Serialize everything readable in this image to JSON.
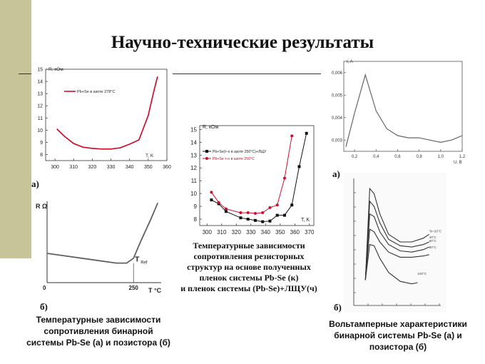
{
  "title": "Научно-технические результаты",
  "colors": {
    "sidebar": "#c8c49a",
    "red": "#c8102e",
    "black": "#111111",
    "gray": "#606060"
  },
  "labels": {
    "a1": "а)",
    "b1": "б)",
    "a2": "а)",
    "b2": "б)"
  },
  "captions": {
    "left": [
      "Температурные зависимости",
      "сопротивления бинарной",
      "системы Pb-Se (а) и позистора (б)"
    ],
    "center": [
      "Температурные зависимости",
      "сопротивления резисторных",
      "структур на основе полученных",
      "пленок системы Pb-Se (к)",
      "и пленок системы (Pb-Se)+ЛЩУ(ч)"
    ],
    "right": [
      "Вольтамперные характеристики",
      "бинарной системы Pb-Se (а) и",
      "позистора (б)"
    ]
  },
  "chart_data": [
    {
      "id": "chart-a-left",
      "type": "line",
      "ylabel": "R, кОм",
      "xlabel": "T, K",
      "xlim": [
        295,
        360
      ],
      "ylim": [
        7.5,
        15
      ],
      "xticks": [
        300,
        310,
        320,
        330,
        340,
        350,
        360
      ],
      "yticks": [
        8,
        9,
        10,
        11,
        12,
        13,
        14,
        15
      ],
      "legend": "Pb+Se в азоте 278°С",
      "series": [
        {
          "color": "#c8102e",
          "x": [
            301,
            305,
            310,
            315,
            320,
            325,
            330,
            335,
            340,
            345,
            350,
            353,
            355
          ],
          "y": [
            10.1,
            9.5,
            8.9,
            8.6,
            8.5,
            8.45,
            8.45,
            8.55,
            8.85,
            9.2,
            11.2,
            13.2,
            14.4
          ]
        }
      ]
    },
    {
      "id": "chart-b-left",
      "type": "line",
      "ylabel": "R Ω",
      "xlabel": "T °C",
      "xlim": [
        0,
        330
      ],
      "ylim": [
        0,
        10
      ],
      "xticks": [
        0,
        250
      ],
      "tref_label": "T",
      "tref_sub": "Ref",
      "series": [
        {
          "color": "#606060",
          "x": [
            0,
            50,
            100,
            150,
            200,
            230,
            250,
            270,
            300,
            320
          ],
          "y": [
            3.6,
            3.3,
            3.0,
            2.7,
            2.4,
            2.4,
            3.0,
            5.0,
            7.8,
            9.8
          ]
        }
      ]
    },
    {
      "id": "chart-center",
      "type": "line",
      "ylabel": "R, кОм",
      "xlabel": "T, K",
      "xlim": [
        295,
        373
      ],
      "ylim": [
        7.5,
        15.3
      ],
      "xticks": [
        300,
        310,
        320,
        330,
        340,
        350,
        360,
        370
      ],
      "yticks": [
        8,
        9,
        10,
        11,
        12,
        13,
        14,
        15
      ],
      "series": [
        {
          "name": "Pb+Se(т-о в азоте 250°С)+ЛЩУ",
          "color": "#111111",
          "marker": "square",
          "x": [
            303,
            308,
            313,
            323,
            328,
            333,
            338,
            343,
            348,
            353,
            358,
            363,
            368
          ],
          "y": [
            9.5,
            9.2,
            8.6,
            8.1,
            8.0,
            7.9,
            7.8,
            7.85,
            8.3,
            8.3,
            9.1,
            12.1,
            14.7
          ]
        },
        {
          "name": "Pb+Se т-о в азоте 250°С",
          "color": "#c8102e",
          "marker": "circle",
          "x": [
            303,
            308,
            313,
            323,
            328,
            333,
            338,
            343,
            348,
            353,
            358
          ],
          "y": [
            10.1,
            9.3,
            8.8,
            8.5,
            8.5,
            8.45,
            8.5,
            8.9,
            9.1,
            11.2,
            14.5
          ]
        }
      ]
    },
    {
      "id": "chart-right-a",
      "type": "line",
      "ylabel": "I, A",
      "xlabel": "U, B",
      "xlim": [
        0.1,
        1.2
      ],
      "ylim": [
        0.0025,
        0.0065
      ],
      "xticks": [
        "0,2",
        "0,4",
        "0,6",
        "0,8",
        "1,0",
        "1,2"
      ],
      "yticks": [
        "0,003",
        "0,004",
        "0,005",
        "0,006"
      ],
      "series": [
        {
          "color": "#666666",
          "x": [
            0.12,
            0.2,
            0.3,
            0.4,
            0.5,
            0.6,
            0.7,
            0.8,
            0.9,
            1.0,
            1.1,
            1.2
          ],
          "y": [
            0.0027,
            0.0042,
            0.0059,
            0.0043,
            0.0035,
            0.0032,
            0.0031,
            0.0031,
            0.003,
            0.0029,
            0.003,
            0.0032
          ]
        }
      ]
    },
    {
      "id": "chart-right-b",
      "type": "line",
      "xlim": [
        0,
        60
      ],
      "ylim": [
        0,
        10
      ],
      "curve_labels": [
        "Тк=20°С",
        "40°С",
        "60°С",
        "80°С",
        "100°С"
      ],
      "series": [
        {
          "color": "#333333",
          "x": [
            8,
            11,
            14,
            18,
            24,
            32,
            40,
            48,
            52
          ],
          "y": [
            2,
            9.2,
            8.8,
            7.2,
            5.6,
            5.0,
            5.0,
            5.3,
            5.6
          ]
        },
        {
          "color": "#333333",
          "x": [
            8,
            11,
            14,
            18,
            24,
            32,
            40,
            48,
            52
          ],
          "y": [
            2,
            8.2,
            7.8,
            6.5,
            5.2,
            4.7,
            4.6,
            4.8,
            5.0
          ]
        },
        {
          "color": "#333333",
          "x": [
            8,
            11,
            14,
            18,
            24,
            32,
            40,
            48,
            52
          ],
          "y": [
            2,
            7.2,
            7.0,
            5.8,
            4.8,
            4.3,
            4.2,
            4.4,
            4.6
          ]
        },
        {
          "color": "#333333",
          "x": [
            8,
            11,
            14,
            18,
            24,
            32,
            40,
            48,
            52
          ],
          "y": [
            2,
            6.0,
            5.8,
            5.0,
            4.2,
            3.8,
            3.8,
            3.9,
            4.0
          ]
        },
        {
          "color": "#333333",
          "x": [
            8,
            11,
            14,
            18,
            24,
            32,
            40,
            44
          ],
          "y": [
            2,
            4.8,
            4.7,
            3.7,
            2.6,
            1.9,
            1.7,
            1.8
          ]
        }
      ]
    }
  ]
}
